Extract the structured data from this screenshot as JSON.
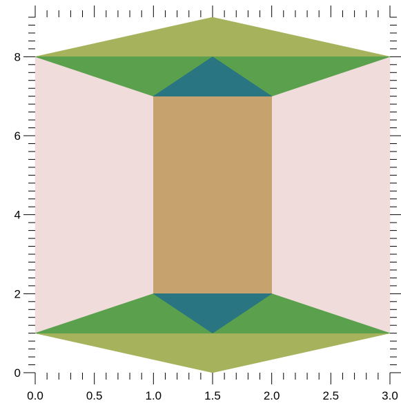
{
  "chart_data": {
    "type": "area",
    "title": "",
    "xlabel": "",
    "ylabel": "",
    "xlim": [
      0,
      3
    ],
    "ylim": [
      0,
      9
    ],
    "grid": false,
    "x_ticks": [
      0.0,
      0.5,
      1.0,
      1.5,
      2.0,
      2.5,
      3.0
    ],
    "x_tick_labels": [
      "0.0",
      "0.5",
      "1.0",
      "1.5",
      "2.0",
      "2.5",
      "3.0"
    ],
    "y_ticks": [
      0,
      2,
      4,
      6,
      8
    ],
    "y_tick_labels": [
      "0",
      "2",
      "4",
      "6",
      "8"
    ],
    "x_minor_step": 0.1,
    "y_minor_step": 0.2,
    "shapes": [
      {
        "name": "left-panel",
        "color": "#f0dcdb",
        "points": [
          [
            0,
            1
          ],
          [
            1,
            2
          ],
          [
            1,
            7
          ],
          [
            0,
            8
          ]
        ]
      },
      {
        "name": "right-panel",
        "color": "#f0dcdb",
        "points": [
          [
            2,
            2
          ],
          [
            3,
            1
          ],
          [
            3,
            8
          ],
          [
            2,
            7
          ]
        ]
      },
      {
        "name": "center-rect",
        "color": "#c6a26f",
        "points": [
          [
            1,
            2
          ],
          [
            2,
            2
          ],
          [
            2,
            7
          ],
          [
            1,
            7
          ]
        ]
      },
      {
        "name": "top-outer-triangle",
        "color": "#a6b35c",
        "points": [
          [
            0,
            8
          ],
          [
            1.5,
            9
          ],
          [
            3,
            8
          ]
        ]
      },
      {
        "name": "bottom-outer-triangle",
        "color": "#a6b35c",
        "points": [
          [
            0,
            1
          ],
          [
            1.5,
            0
          ],
          [
            3,
            1
          ]
        ]
      },
      {
        "name": "top-middle-band",
        "color": "#5ba04c",
        "points": [
          [
            0,
            8
          ],
          [
            3,
            8
          ],
          [
            2,
            7
          ],
          [
            1,
            7
          ]
        ]
      },
      {
        "name": "bottom-middle-band",
        "color": "#5ba04c",
        "points": [
          [
            0,
            1
          ],
          [
            1,
            2
          ],
          [
            2,
            2
          ],
          [
            3,
            1
          ]
        ]
      },
      {
        "name": "top-inner-triangle",
        "color": "#2a7582",
        "points": [
          [
            1,
            7
          ],
          [
            1.5,
            8
          ],
          [
            2,
            7
          ]
        ]
      },
      {
        "name": "bottom-inner-triangle",
        "color": "#2a7582",
        "points": [
          [
            1,
            2
          ],
          [
            1.5,
            1
          ],
          [
            2,
            2
          ]
        ]
      }
    ]
  }
}
